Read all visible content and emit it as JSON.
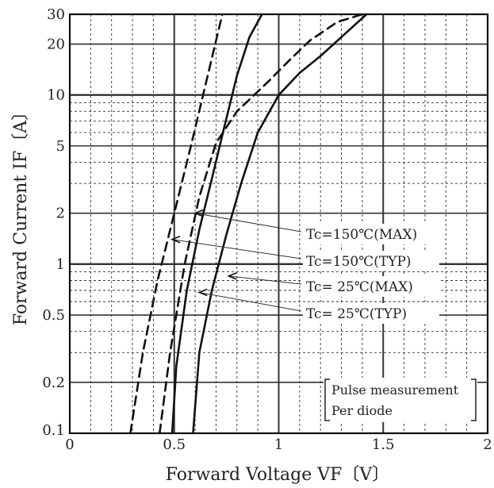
{
  "chart_data": {
    "type": "line",
    "xlabel": "Forward Voltage  VF〔V〕",
    "ylabel": "Forward Current  IF〔A〕",
    "x_scale": "linear",
    "y_scale": "log",
    "xlim": [
      0,
      2
    ],
    "ylim": [
      0.1,
      30
    ],
    "x_ticks": [
      {
        "value": 0,
        "label": "0"
      },
      {
        "value": 0.5,
        "label": "0.5"
      },
      {
        "value": 1,
        "label": "1"
      },
      {
        "value": 1.5,
        "label": "1.5"
      },
      {
        "value": 2,
        "label": "2"
      }
    ],
    "y_ticks": [
      {
        "value": 0.1,
        "label": "0.1"
      },
      {
        "value": 0.2,
        "label": "0.2"
      },
      {
        "value": 0.5,
        "label": "0.5"
      },
      {
        "value": 1,
        "label": "1"
      },
      {
        "value": 2,
        "label": "2"
      },
      {
        "value": 5,
        "label": "5"
      },
      {
        "value": 10,
        "label": "10"
      },
      {
        "value": 20,
        "label": "20"
      },
      {
        "value": 30,
        "label": "30"
      }
    ],
    "grid": true,
    "legend_position": "right",
    "series": [
      {
        "name": "Tc=150℃(MAX)",
        "style": "dashed",
        "x": [
          0.43,
          0.48,
          0.55,
          0.62,
          0.7,
          0.8,
          0.95,
          1.05,
          1.15,
          1.28,
          1.4
        ],
        "y": [
          0.1,
          0.3,
          1,
          2.5,
          5.2,
          8,
          12,
          16,
          21,
          27,
          30
        ]
      },
      {
        "name": "Tc=150℃(TYP)",
        "style": "dashed",
        "x": [
          0.29,
          0.35,
          0.42,
          0.5,
          0.58,
          0.66,
          0.73
        ],
        "y": [
          0.1,
          0.3,
          0.8,
          2,
          5,
          13,
          30
        ]
      },
      {
        "name": "Tc= 25℃(MAX)",
        "style": "solid",
        "x": [
          0.59,
          0.62,
          0.68,
          0.75,
          0.82,
          0.9,
          1.0,
          1.1,
          1.2,
          1.3,
          1.42
        ],
        "y": [
          0.1,
          0.3,
          0.7,
          1.5,
          3,
          6,
          10,
          13.5,
          17,
          22,
          30
        ]
      },
      {
        "name": "Tc= 25℃(TYP)",
        "style": "solid",
        "x": [
          0.49,
          0.51,
          0.56,
          0.62,
          0.68,
          0.74,
          0.8,
          0.86,
          0.92
        ],
        "y": [
          0.1,
          0.25,
          0.7,
          1.6,
          3.2,
          6.5,
          13,
          22,
          30
        ]
      }
    ],
    "annotation": "〔Pulse measurement\nPer diode",
    "annotation_lines": [
      "Pulse measurement",
      "Per diode"
    ]
  },
  "legend": {
    "labels": [
      "Tc=150℃(MAX)",
      "Tc=150℃(TYP)",
      "Tc= 25℃(MAX)",
      "Tc= 25℃(TYP)"
    ]
  },
  "colors": {
    "line": "#111111",
    "grid": "#333333",
    "text": "#222222"
  }
}
